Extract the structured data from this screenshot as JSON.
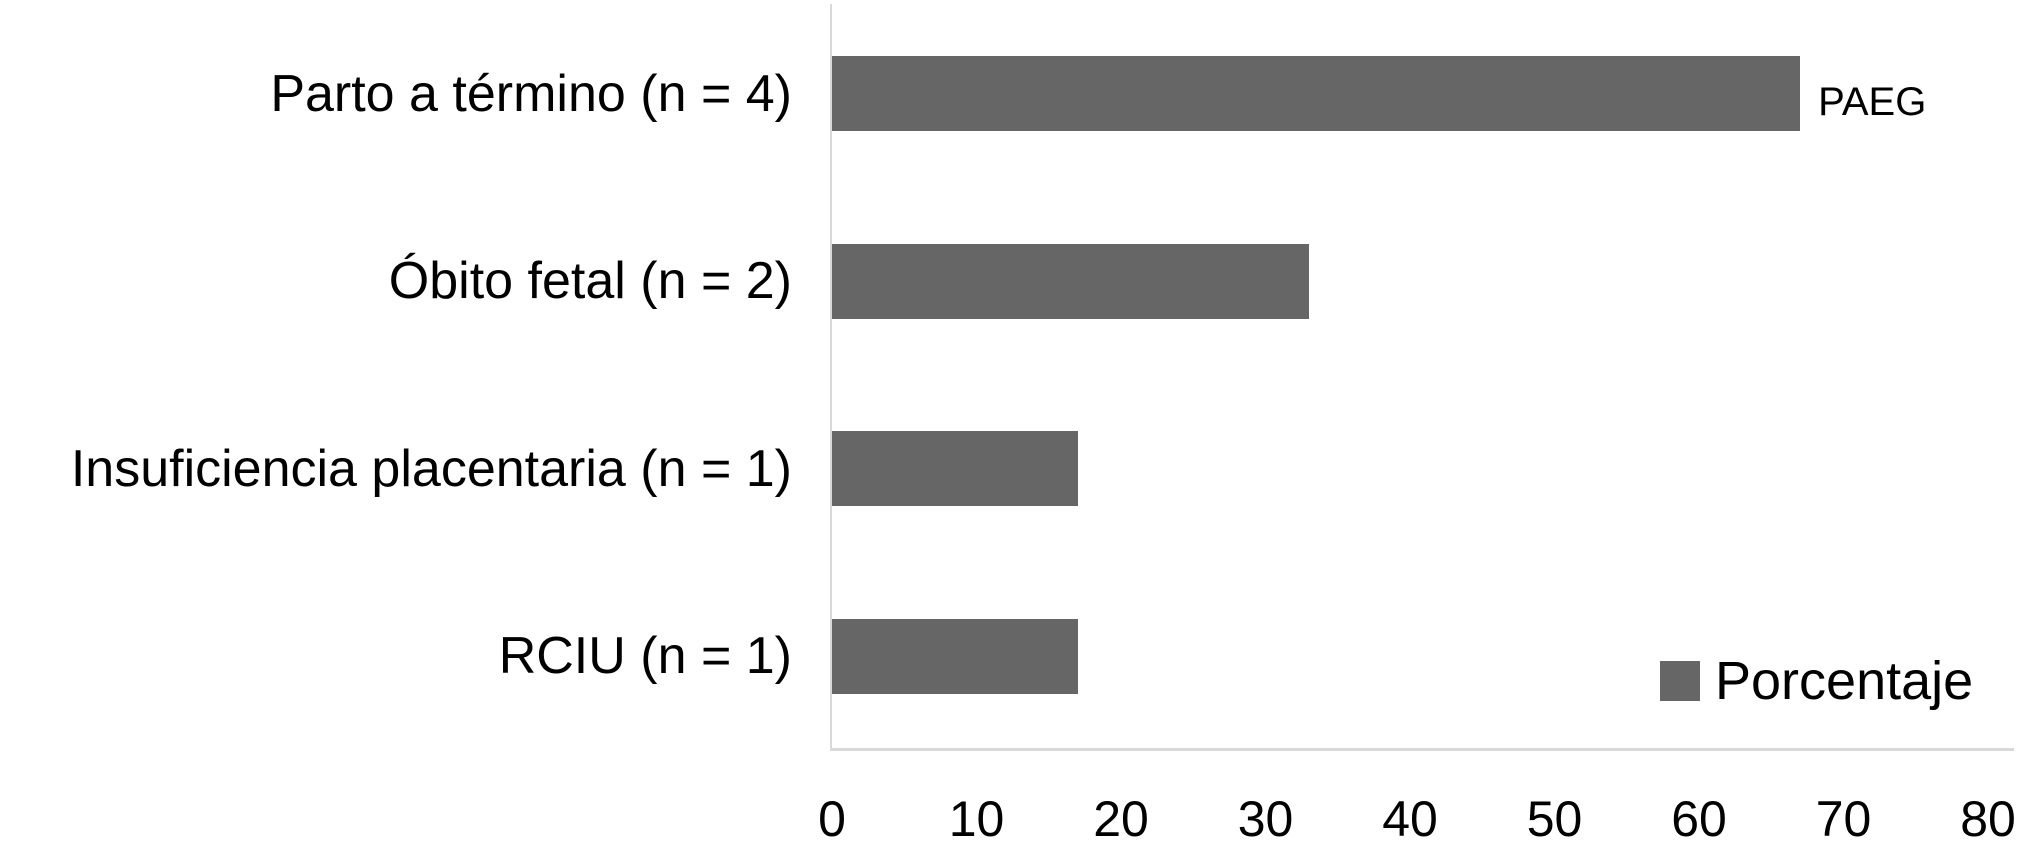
{
  "chart_data": {
    "type": "bar",
    "orientation": "horizontal",
    "title": "",
    "xlabel": "",
    "ylabel": "",
    "categories": [
      "Parto a término (n = 4)",
      "Óbito fetal (n = 2)",
      "Insuficiencia placentaria (n = 1)",
      "RCIU (n = 1)"
    ],
    "values": [
      67,
      33,
      17,
      17
    ],
    "xlim": [
      0,
      80
    ],
    "x_ticks": [
      "0",
      "10",
      "20",
      "30",
      "40",
      "50",
      "60",
      "70",
      "80"
    ],
    "grid": false,
    "annotations": [
      {
        "text": "PAEG",
        "bar_index": 0,
        "position": "end-of-bar"
      }
    ],
    "legend": {
      "label": "Porcentaje",
      "position": "bottom-right"
    },
    "colors": {
      "bar": "#666666",
      "axis": "#d9d9d9",
      "text": "#000000",
      "background": "#ffffff"
    }
  }
}
